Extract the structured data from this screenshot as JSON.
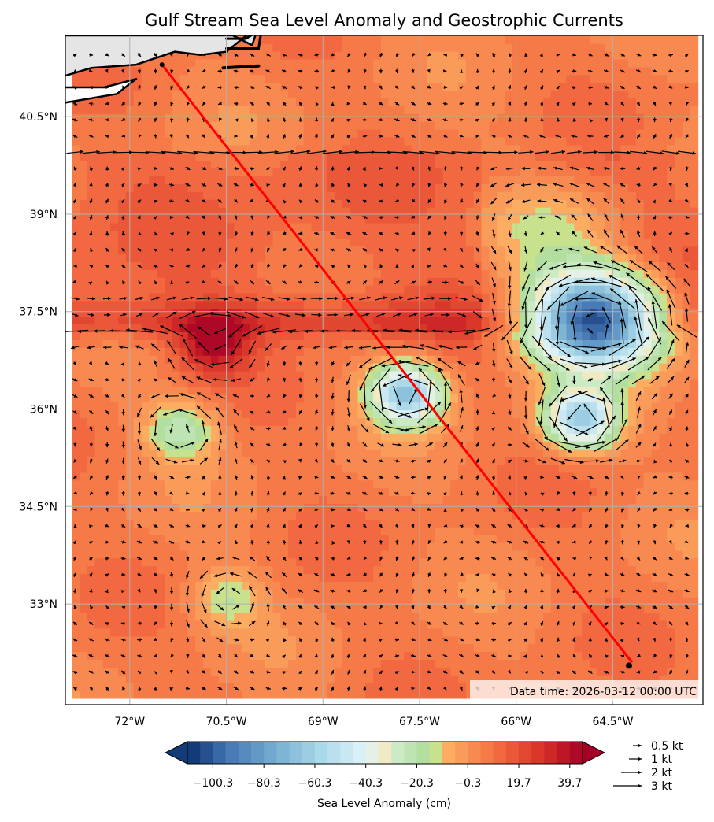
{
  "chart_data": {
    "type": "contour map with vector field",
    "title": "Gulf Stream Sea Level Anomaly and Geostrophic Currents",
    "xlabel": "",
    "ylabel": "",
    "xlim": [
      -73.0,
      -63.1
    ],
    "ylim": [
      31.45,
      41.75
    ],
    "x_ticks": [
      {
        "value": -72.0,
        "label": "72°W"
      },
      {
        "value": -70.5,
        "label": "70.5°W"
      },
      {
        "value": -69.0,
        "label": "69°W"
      },
      {
        "value": -67.5,
        "label": "67.5°W"
      },
      {
        "value": -66.0,
        "label": "66°W"
      },
      {
        "value": -64.5,
        "label": "64.5°W"
      }
    ],
    "y_ticks": [
      {
        "value": 40.5,
        "label": "40.5°N"
      },
      {
        "value": 39.0,
        "label": "39°N"
      },
      {
        "value": 37.5,
        "label": "37.5°N"
      },
      {
        "value": 36.0,
        "label": "36°N"
      },
      {
        "value": 34.5,
        "label": "34.5°N"
      },
      {
        "value": 33.0,
        "label": "33°N"
      }
    ],
    "grid": true,
    "colorbar": {
      "label": "Sea Level Anomaly (cm)",
      "min": -110.3,
      "max": 44.7,
      "step": 5,
      "extend": "both",
      "colormap": "RdYlBu reversed",
      "tick_values": [
        -100.3,
        -80.3,
        -60.3,
        -40.3,
        -20.3,
        -0.3,
        19.7,
        39.7
      ],
      "tick_labels": [
        "−100.3",
        "−80.3",
        "−60.3",
        "−40.3",
        "−20.3",
        "−0.3",
        "19.7",
        "39.7"
      ]
    },
    "features": [
      {
        "kind": "warm eddy",
        "lon": -70.7,
        "lat": 37.0,
        "peak_cm": 40
      },
      {
        "kind": "cold eddy",
        "lon": -67.7,
        "lat": 36.25,
        "peak_cm": -65
      },
      {
        "kind": "cold eddy",
        "lon": -64.8,
        "lat": 37.4,
        "peak_cm": -110
      },
      {
        "kind": "cold eddy",
        "lon": -65.0,
        "lat": 35.85,
        "peak_cm": -60
      },
      {
        "kind": "cold eddy",
        "lon": -71.2,
        "lat": 35.7,
        "peak_cm": -22
      },
      {
        "kind": "cold eddy",
        "lon": -70.5,
        "lat": 33.1,
        "peak_cm": -12
      },
      {
        "kind": "jet axis",
        "path": [
          [
            -72.8,
            36.2
          ],
          [
            -71.0,
            37.4
          ],
          [
            -68.5,
            37.5
          ],
          [
            -66.8,
            37.5
          ],
          [
            -65.8,
            36.9
          ]
        ]
      }
    ],
    "track": {
      "color": "#ff0000",
      "start": {
        "lon": -71.5,
        "lat": 41.3
      },
      "end": {
        "lon": -64.2,
        "lat": 32.1
      }
    },
    "quiver_key": [
      {
        "label": "0.5 kt",
        "knots": 0.5
      },
      {
        "label": "1 kt",
        "knots": 1
      },
      {
        "label": "2 kt",
        "knots": 2
      },
      {
        "label": "3 kt",
        "knots": 3
      }
    ],
    "annotation": "Data time: 2026-03-12 00:00 UTC",
    "land_color": "#e5e5e5"
  }
}
